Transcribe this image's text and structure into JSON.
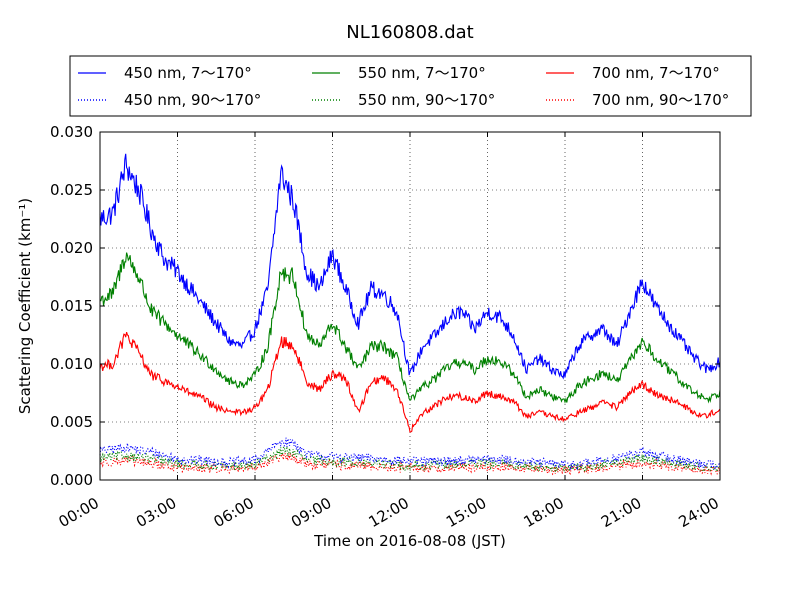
{
  "chart_data": {
    "type": "line",
    "title": "NL160808.dat",
    "xlabel": "Time on 2016-08-08 (JST)",
    "ylabel": "Scattering Coefficient (km⁻¹)",
    "xlim": [
      0,
      24
    ],
    "ylim": [
      0,
      0.03
    ],
    "x_ticks": [
      "00:00",
      "03:00",
      "06:00",
      "09:00",
      "12:00",
      "15:00",
      "18:00",
      "21:00",
      "24:00"
    ],
    "y_ticks": [
      "0.000",
      "0.005",
      "0.010",
      "0.015",
      "0.020",
      "0.025",
      "0.030"
    ],
    "grid": true,
    "legend_position": "top",
    "series": [
      {
        "name": "450 nm, 7～170°",
        "color": "#0000ff",
        "style": "solid",
        "x": [
          0,
          0.5,
          1,
          1.5,
          2,
          2.5,
          3,
          3.5,
          4,
          4.5,
          5,
          5.5,
          6,
          6.5,
          7,
          7.5,
          8,
          8.5,
          9,
          9.5,
          10,
          10.5,
          11,
          11.5,
          12,
          12.5,
          13,
          13.5,
          14,
          14.5,
          15,
          15.5,
          16,
          16.5,
          17,
          17.5,
          18,
          18.5,
          19,
          19.5,
          20,
          20.5,
          21,
          21.5,
          22,
          22.5,
          23,
          23.5,
          24
        ],
        "values": [
          0.0225,
          0.023,
          0.0272,
          0.025,
          0.0215,
          0.019,
          0.018,
          0.0165,
          0.015,
          0.0135,
          0.012,
          0.0115,
          0.013,
          0.0165,
          0.0265,
          0.024,
          0.018,
          0.0165,
          0.0195,
          0.0165,
          0.0135,
          0.0165,
          0.016,
          0.0145,
          0.009,
          0.0115,
          0.0125,
          0.014,
          0.0145,
          0.013,
          0.0145,
          0.014,
          0.0125,
          0.0095,
          0.0105,
          0.0095,
          0.009,
          0.0115,
          0.0125,
          0.013,
          0.0115,
          0.0145,
          0.0172,
          0.015,
          0.0135,
          0.012,
          0.0105,
          0.0095,
          0.0102
        ]
      },
      {
        "name": "450 nm, 90～170°",
        "color": "#0000ff",
        "style": "dotted",
        "x": [
          0,
          1,
          2,
          3,
          4,
          5,
          6,
          7,
          7.5,
          8,
          9,
          10,
          11,
          12,
          13,
          14,
          15,
          16,
          17,
          18,
          19,
          20,
          21,
          22,
          23,
          24
        ],
        "values": [
          0.0025,
          0.0028,
          0.0024,
          0.0018,
          0.0017,
          0.0015,
          0.0017,
          0.0033,
          0.0032,
          0.0022,
          0.002,
          0.0019,
          0.0018,
          0.0016,
          0.0016,
          0.0017,
          0.0018,
          0.0017,
          0.0015,
          0.0013,
          0.0015,
          0.0019,
          0.0024,
          0.0019,
          0.0015,
          0.0013
        ]
      },
      {
        "name": "550 nm, 7～170°",
        "color": "#008000",
        "style": "solid",
        "x": [
          0,
          0.5,
          1,
          1.5,
          2,
          2.5,
          3,
          3.5,
          4,
          4.5,
          5,
          5.5,
          6,
          6.5,
          7,
          7.5,
          8,
          8.5,
          9,
          9.5,
          10,
          10.5,
          11,
          11.5,
          12,
          12.5,
          13,
          13.5,
          14,
          14.5,
          15,
          15.5,
          16,
          16.5,
          17,
          17.5,
          18,
          18.5,
          19,
          19.5,
          20,
          20.5,
          21,
          21.5,
          22,
          22.5,
          23,
          23.5,
          24
        ],
        "values": [
          0.0155,
          0.016,
          0.0195,
          0.0175,
          0.0145,
          0.0135,
          0.0125,
          0.0115,
          0.0105,
          0.0095,
          0.0085,
          0.0082,
          0.009,
          0.0115,
          0.018,
          0.0175,
          0.0125,
          0.0115,
          0.0135,
          0.0115,
          0.0095,
          0.0115,
          0.0115,
          0.0105,
          0.0068,
          0.008,
          0.0088,
          0.0098,
          0.0102,
          0.0095,
          0.0105,
          0.0102,
          0.0092,
          0.0072,
          0.0078,
          0.0072,
          0.0068,
          0.008,
          0.0088,
          0.0092,
          0.0085,
          0.0102,
          0.012,
          0.0105,
          0.0095,
          0.0085,
          0.0075,
          0.007,
          0.0075
        ]
      },
      {
        "name": "550 nm, 90～170°",
        "color": "#008000",
        "style": "dotted",
        "x": [
          0,
          1,
          2,
          3,
          4,
          5,
          6,
          7,
          7.5,
          8,
          9,
          10,
          11,
          12,
          13,
          14,
          15,
          16,
          17,
          18,
          19,
          20,
          21,
          22,
          23,
          24
        ],
        "values": [
          0.0019,
          0.0021,
          0.0018,
          0.0014,
          0.0013,
          0.0012,
          0.0013,
          0.0025,
          0.0024,
          0.0017,
          0.0016,
          0.0015,
          0.0014,
          0.0012,
          0.0013,
          0.0014,
          0.0014,
          0.0013,
          0.0012,
          0.001,
          0.0012,
          0.0015,
          0.0019,
          0.0015,
          0.0012,
          0.001
        ]
      },
      {
        "name": "700 nm, 7～170°",
        "color": "#ff0000",
        "style": "solid",
        "x": [
          0,
          0.5,
          1,
          1.5,
          2,
          2.5,
          3,
          3.5,
          4,
          4.5,
          5,
          5.5,
          6,
          6.5,
          7,
          7.5,
          8,
          8.5,
          9,
          9.5,
          10,
          10.5,
          11,
          11.5,
          12,
          12.5,
          13,
          13.5,
          14,
          14.5,
          15,
          15.5,
          16,
          16.5,
          17,
          17.5,
          18,
          18.5,
          19,
          19.5,
          20,
          20.5,
          21,
          21.5,
          22,
          22.5,
          23,
          23.5,
          24
        ],
        "values": [
          0.0098,
          0.01,
          0.0125,
          0.011,
          0.009,
          0.0085,
          0.008,
          0.0075,
          0.007,
          0.0062,
          0.006,
          0.0058,
          0.0062,
          0.0078,
          0.012,
          0.0115,
          0.0085,
          0.0078,
          0.0092,
          0.0088,
          0.0058,
          0.0085,
          0.0088,
          0.0078,
          0.0042,
          0.0058,
          0.0065,
          0.0072,
          0.0072,
          0.0068,
          0.0075,
          0.0072,
          0.0068,
          0.0055,
          0.0058,
          0.0055,
          0.0052,
          0.0058,
          0.0062,
          0.0068,
          0.0062,
          0.0075,
          0.0082,
          0.0075,
          0.007,
          0.0065,
          0.0058,
          0.0055,
          0.0062
        ]
      },
      {
        "name": "700 nm, 90～170°",
        "color": "#ff0000",
        "style": "dotted",
        "x": [
          0,
          1,
          2,
          3,
          4,
          5,
          6,
          7,
          7.5,
          8,
          9,
          10,
          11,
          12,
          13,
          14,
          15,
          16,
          17,
          18,
          19,
          20,
          21,
          22,
          23,
          24
        ],
        "values": [
          0.0015,
          0.0017,
          0.0014,
          0.0011,
          0.001,
          0.001,
          0.0011,
          0.002,
          0.0019,
          0.0014,
          0.0013,
          0.0012,
          0.0011,
          0.001,
          0.001,
          0.0011,
          0.0011,
          0.0011,
          0.001,
          0.0008,
          0.001,
          0.0012,
          0.0015,
          0.0012,
          0.001,
          0.0008
        ]
      }
    ]
  }
}
